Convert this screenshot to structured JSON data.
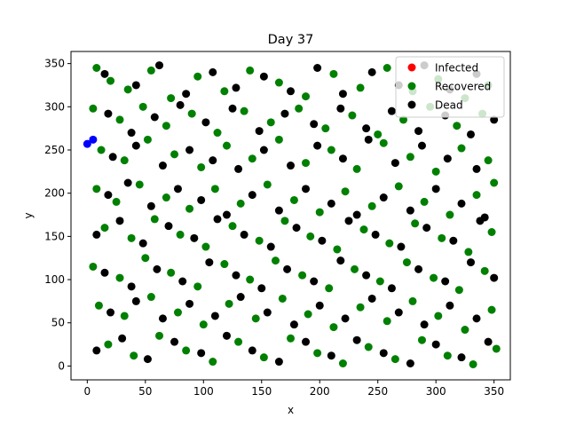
{
  "chart_data": {
    "type": "scatter",
    "title": "Day 37",
    "xlabel": "x",
    "ylabel": "y",
    "xlim": [
      -14,
      364
    ],
    "ylim": [
      -16,
      364
    ],
    "x_ticks": [
      0,
      50,
      100,
      150,
      200,
      250,
      300,
      350
    ],
    "y_ticks": [
      0,
      50,
      100,
      150,
      200,
      250,
      300,
      350
    ],
    "grid": false,
    "legend_position": "top-right",
    "legend": [
      {
        "label": "Infected",
        "color": "#ff0000"
      },
      {
        "label": "Recovered",
        "color": "#008000"
      },
      {
        "label": "Dead",
        "color": "#000000"
      }
    ],
    "series": [
      {
        "name": "Infected",
        "color": "#ff0000",
        "points": []
      },
      {
        "name": "Recovered",
        "color": "#008000",
        "points": [
          [
            8,
            345
          ],
          [
            20,
            330
          ],
          [
            35,
            320
          ],
          [
            55,
            342
          ],
          [
            72,
            310
          ],
          [
            95,
            335
          ],
          [
            118,
            318
          ],
          [
            140,
            342
          ],
          [
            165,
            328
          ],
          [
            188,
            312
          ],
          [
            212,
            338
          ],
          [
            235,
            322
          ],
          [
            258,
            345
          ],
          [
            280,
            318
          ],
          [
            302,
            332
          ],
          [
            325,
            310
          ],
          [
            345,
            325
          ],
          [
            5,
            298
          ],
          [
            28,
            285
          ],
          [
            48,
            300
          ],
          [
            68,
            278
          ],
          [
            90,
            292
          ],
          [
            112,
            270
          ],
          [
            135,
            295
          ],
          [
            158,
            282
          ],
          [
            182,
            298
          ],
          [
            205,
            275
          ],
          [
            228,
            290
          ],
          [
            250,
            268
          ],
          [
            272,
            285
          ],
          [
            295,
            300
          ],
          [
            318,
            278
          ],
          [
            340,
            292
          ],
          [
            12,
            250
          ],
          [
            32,
            238
          ],
          [
            52,
            262
          ],
          [
            75,
            245
          ],
          [
            98,
            230
          ],
          [
            120,
            255
          ],
          [
            142,
            240
          ],
          [
            165,
            262
          ],
          [
            188,
            235
          ],
          [
            210,
            250
          ],
          [
            232,
            228
          ],
          [
            255,
            258
          ],
          [
            278,
            242
          ],
          [
            300,
            225
          ],
          [
            322,
            252
          ],
          [
            345,
            238
          ],
          [
            8,
            205
          ],
          [
            25,
            190
          ],
          [
            45,
            210
          ],
          [
            68,
            195
          ],
          [
            88,
            182
          ],
          [
            110,
            205
          ],
          [
            132,
            188
          ],
          [
            155,
            210
          ],
          [
            178,
            192
          ],
          [
            200,
            178
          ],
          [
            222,
            202
          ],
          [
            245,
            185
          ],
          [
            268,
            208
          ],
          [
            290,
            190
          ],
          [
            312,
            175
          ],
          [
            335,
            198
          ],
          [
            350,
            212
          ],
          [
            15,
            160
          ],
          [
            38,
            148
          ],
          [
            58,
            170
          ],
          [
            80,
            152
          ],
          [
            102,
            138
          ],
          [
            125,
            162
          ],
          [
            148,
            145
          ],
          [
            170,
            168
          ],
          [
            192,
            150
          ],
          [
            215,
            135
          ],
          [
            238,
            158
          ],
          [
            260,
            142
          ],
          [
            282,
            165
          ],
          [
            305,
            148
          ],
          [
            328,
            132
          ],
          [
            348,
            155
          ],
          [
            5,
            115
          ],
          [
            28,
            102
          ],
          [
            50,
            125
          ],
          [
            72,
            108
          ],
          [
            95,
            92
          ],
          [
            118,
            118
          ],
          [
            140,
            100
          ],
          [
            162,
            122
          ],
          [
            185,
            105
          ],
          [
            208,
            90
          ],
          [
            230,
            112
          ],
          [
            252,
            98
          ],
          [
            275,
            120
          ],
          [
            298,
            102
          ],
          [
            320,
            88
          ],
          [
            342,
            110
          ],
          [
            10,
            70
          ],
          [
            32,
            58
          ],
          [
            55,
            80
          ],
          [
            78,
            62
          ],
          [
            100,
            48
          ],
          [
            122,
            72
          ],
          [
            145,
            55
          ],
          [
            168,
            78
          ],
          [
            190,
            60
          ],
          [
            212,
            45
          ],
          [
            235,
            68
          ],
          [
            258,
            52
          ],
          [
            280,
            75
          ],
          [
            302,
            58
          ],
          [
            325,
            42
          ],
          [
            348,
            65
          ],
          [
            18,
            25
          ],
          [
            40,
            12
          ],
          [
            62,
            35
          ],
          [
            85,
            18
          ],
          [
            108,
            5
          ],
          [
            130,
            28
          ],
          [
            152,
            10
          ],
          [
            175,
            32
          ],
          [
            198,
            15
          ],
          [
            220,
            3
          ],
          [
            242,
            22
          ],
          [
            265,
            8
          ],
          [
            288,
            30
          ],
          [
            310,
            12
          ],
          [
            332,
            2
          ],
          [
            352,
            20
          ]
        ]
      },
      {
        "name": "Dead",
        "color": "#000000",
        "points": [
          [
            15,
            338
          ],
          [
            42,
            325
          ],
          [
            62,
            348
          ],
          [
            85,
            315
          ],
          [
            108,
            340
          ],
          [
            128,
            322
          ],
          [
            152,
            335
          ],
          [
            175,
            318
          ],
          [
            198,
            345
          ],
          [
            220,
            315
          ],
          [
            245,
            340
          ],
          [
            268,
            325
          ],
          [
            290,
            348
          ],
          [
            312,
            320
          ],
          [
            335,
            338
          ],
          [
            18,
            292
          ],
          [
            38,
            270
          ],
          [
            58,
            288
          ],
          [
            80,
            302
          ],
          [
            102,
            282
          ],
          [
            125,
            298
          ],
          [
            148,
            272
          ],
          [
            170,
            292
          ],
          [
            195,
            280
          ],
          [
            218,
            298
          ],
          [
            240,
            275
          ],
          [
            262,
            295
          ],
          [
            285,
            272
          ],
          [
            308,
            290
          ],
          [
            330,
            268
          ],
          [
            350,
            285
          ],
          [
            22,
            242
          ],
          [
            42,
            255
          ],
          [
            65,
            232
          ],
          [
            88,
            250
          ],
          [
            108,
            238
          ],
          [
            130,
            228
          ],
          [
            152,
            250
          ],
          [
            175,
            232
          ],
          [
            198,
            255
          ],
          [
            220,
            240
          ],
          [
            242,
            262
          ],
          [
            265,
            235
          ],
          [
            288,
            255
          ],
          [
            310,
            240
          ],
          [
            335,
            228
          ],
          [
            18,
            198
          ],
          [
            35,
            212
          ],
          [
            55,
            185
          ],
          [
            78,
            205
          ],
          [
            98,
            192
          ],
          [
            120,
            175
          ],
          [
            142,
            198
          ],
          [
            165,
            180
          ],
          [
            188,
            205
          ],
          [
            210,
            188
          ],
          [
            232,
            175
          ],
          [
            255,
            195
          ],
          [
            278,
            180
          ],
          [
            300,
            205
          ],
          [
            322,
            188
          ],
          [
            342,
            172
          ],
          [
            8,
            152
          ],
          [
            28,
            168
          ],
          [
            48,
            142
          ],
          [
            70,
            162
          ],
          [
            92,
            148
          ],
          [
            112,
            170
          ],
          [
            135,
            152
          ],
          [
            158,
            138
          ],
          [
            180,
            160
          ],
          [
            202,
            145
          ],
          [
            225,
            168
          ],
          [
            248,
            152
          ],
          [
            270,
            138
          ],
          [
            292,
            160
          ],
          [
            315,
            145
          ],
          [
            338,
            168
          ],
          [
            15,
            108
          ],
          [
            38,
            92
          ],
          [
            60,
            112
          ],
          [
            82,
            98
          ],
          [
            105,
            120
          ],
          [
            128,
            105
          ],
          [
            150,
            90
          ],
          [
            172,
            112
          ],
          [
            195,
            98
          ],
          [
            218,
            122
          ],
          [
            240,
            105
          ],
          [
            262,
            90
          ],
          [
            285,
            112
          ],
          [
            308,
            98
          ],
          [
            330,
            120
          ],
          [
            350,
            102
          ],
          [
            20,
            62
          ],
          [
            42,
            75
          ],
          [
            65,
            55
          ],
          [
            88,
            72
          ],
          [
            110,
            58
          ],
          [
            132,
            80
          ],
          [
            155,
            62
          ],
          [
            178,
            48
          ],
          [
            200,
            70
          ],
          [
            222,
            55
          ],
          [
            245,
            78
          ],
          [
            268,
            62
          ],
          [
            290,
            48
          ],
          [
            312,
            70
          ],
          [
            335,
            55
          ],
          [
            8,
            18
          ],
          [
            30,
            32
          ],
          [
            52,
            8
          ],
          [
            75,
            28
          ],
          [
            98,
            15
          ],
          [
            120,
            35
          ],
          [
            142,
            18
          ],
          [
            165,
            5
          ],
          [
            188,
            28
          ],
          [
            210,
            12
          ],
          [
            232,
            30
          ],
          [
            255,
            15
          ],
          [
            278,
            3
          ],
          [
            300,
            25
          ],
          [
            322,
            10
          ],
          [
            345,
            28
          ]
        ]
      },
      {
        "name": "",
        "color": "#0000ff",
        "points": [
          [
            0,
            257
          ],
          [
            5,
            262
          ]
        ]
      }
    ]
  }
}
